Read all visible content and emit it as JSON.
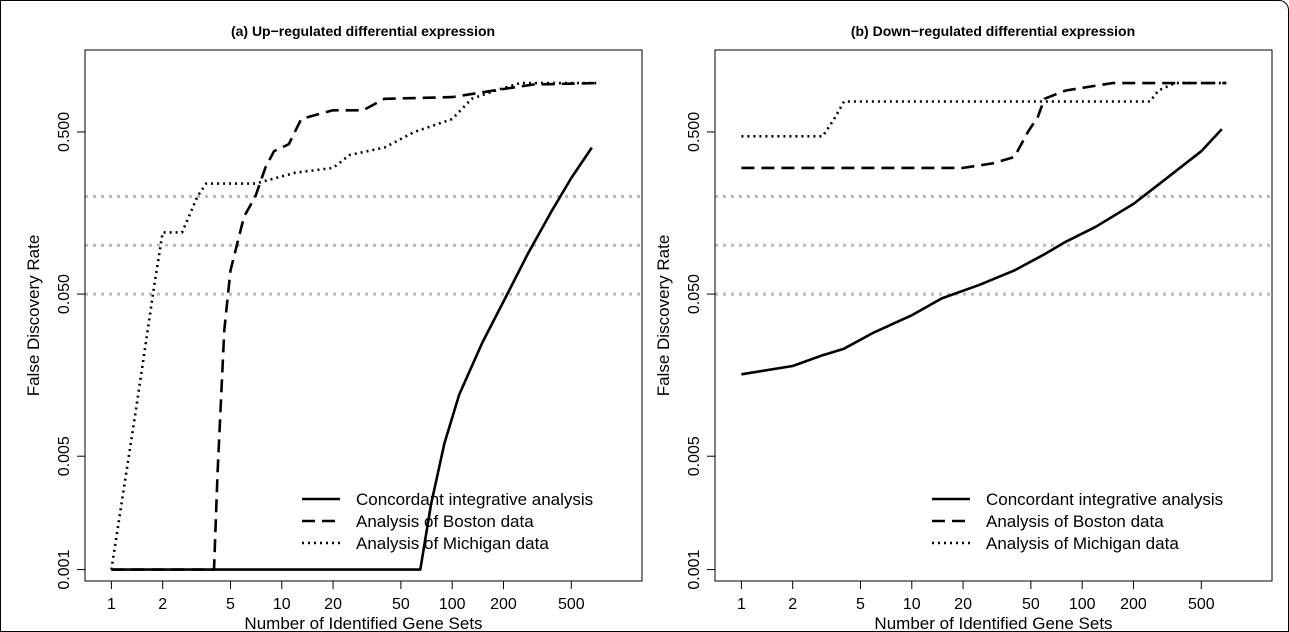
{
  "chart_data": [
    {
      "type": "line",
      "title": "(a) Up−regulated differential expression",
      "xlabel": "Number of Identified Gene Sets",
      "ylabel": "False Discovery Rate",
      "x_scale": "log",
      "y_scale": "log",
      "xlim": [
        0.7,
        1300
      ],
      "ylim": [
        0.00085,
        1.6
      ],
      "x_ticks": [
        1,
        2,
        5,
        10,
        20,
        50,
        100,
        200,
        500
      ],
      "x_tick_labels": [
        "1",
        "2",
        "5",
        "10",
        "20",
        "50",
        "100",
        "200",
        "500"
      ],
      "y_ticks": [
        0.001,
        0.005,
        0.05,
        0.5
      ],
      "y_tick_labels": [
        "0.001",
        "0.005",
        "0.050",
        "0.500"
      ],
      "reference_lines_y": [
        0.05,
        0.1,
        0.2
      ],
      "reference_line_color": "#bbbbbb",
      "legend_position": "bottom-right",
      "series": [
        {
          "name": "Concordant integrative analysis",
          "dash": "solid",
          "points": [
            [
              1,
              0.001
            ],
            [
              10,
              0.001
            ],
            [
              40,
              0.001
            ],
            [
              65,
              0.001
            ],
            [
              75,
              0.0025
            ],
            [
              90,
              0.006
            ],
            [
              110,
              0.012
            ],
            [
              150,
              0.025
            ],
            [
              200,
              0.045
            ],
            [
              280,
              0.09
            ],
            [
              380,
              0.16
            ],
            [
              500,
              0.26
            ],
            [
              660,
              0.4
            ]
          ]
        },
        {
          "name": "Analysis of Boston data",
          "dash": "dashed",
          "points": [
            [
              1,
              0.001
            ],
            [
              4,
              0.001
            ],
            [
              4.2,
              0.004
            ],
            [
              4.6,
              0.03
            ],
            [
              5,
              0.07
            ],
            [
              6,
              0.15
            ],
            [
              7,
              0.2
            ],
            [
              8,
              0.3
            ],
            [
              9,
              0.38
            ],
            [
              11,
              0.42
            ],
            [
              13,
              0.6
            ],
            [
              17,
              0.65
            ],
            [
              20,
              0.68
            ],
            [
              30,
              0.68
            ],
            [
              40,
              0.8
            ],
            [
              100,
              0.82
            ],
            [
              200,
              0.92
            ],
            [
              300,
              0.98
            ],
            [
              700,
              1.0
            ]
          ]
        },
        {
          "name": "Analysis of Michigan data",
          "dash": "dotted",
          "points": [
            [
              1,
              0.001
            ],
            [
              1.4,
              0.01
            ],
            [
              1.8,
              0.06
            ],
            [
              2,
              0.12
            ],
            [
              2.6,
              0.12
            ],
            [
              3.2,
              0.2
            ],
            [
              3.6,
              0.24
            ],
            [
              7,
              0.24
            ],
            [
              12,
              0.28
            ],
            [
              20,
              0.3
            ],
            [
              25,
              0.36
            ],
            [
              40,
              0.4
            ],
            [
              60,
              0.5
            ],
            [
              100,
              0.6
            ],
            [
              130,
              0.8
            ],
            [
              180,
              0.9
            ],
            [
              250,
              1.0
            ],
            [
              700,
              1.0
            ]
          ]
        }
      ]
    },
    {
      "type": "line",
      "title": "(b) Down−regulated differential expression",
      "xlabel": "Number of Identified Gene Sets",
      "ylabel": "False Discovery Rate",
      "x_scale": "log",
      "y_scale": "log",
      "xlim": [
        0.7,
        1300
      ],
      "ylim": [
        0.00085,
        1.6
      ],
      "x_ticks": [
        1,
        2,
        5,
        10,
        20,
        50,
        100,
        200,
        500
      ],
      "x_tick_labels": [
        "1",
        "2",
        "5",
        "10",
        "20",
        "50",
        "100",
        "200",
        "500"
      ],
      "y_ticks": [
        0.001,
        0.005,
        0.05,
        0.5
      ],
      "y_tick_labels": [
        "0.001",
        "0.005",
        "0.050",
        "0.500"
      ],
      "reference_lines_y": [
        0.05,
        0.1,
        0.2
      ],
      "reference_line_color": "#bbbbbb",
      "legend_position": "bottom-right",
      "series": [
        {
          "name": "Concordant integrative analysis",
          "dash": "solid",
          "points": [
            [
              1,
              0.016
            ],
            [
              2,
              0.018
            ],
            [
              3,
              0.021
            ],
            [
              4,
              0.023
            ],
            [
              6,
              0.029
            ],
            [
              10,
              0.037
            ],
            [
              15,
              0.047
            ],
            [
              25,
              0.057
            ],
            [
              40,
              0.07
            ],
            [
              60,
              0.088
            ],
            [
              80,
              0.105
            ],
            [
              120,
              0.13
            ],
            [
              200,
              0.18
            ],
            [
              300,
              0.25
            ],
            [
              500,
              0.38
            ],
            [
              660,
              0.52
            ]
          ]
        },
        {
          "name": "Analysis of Boston data",
          "dash": "dashed",
          "points": [
            [
              1,
              0.3
            ],
            [
              20,
              0.3
            ],
            [
              30,
              0.32
            ],
            [
              40,
              0.35
            ],
            [
              48,
              0.5
            ],
            [
              55,
              0.62
            ],
            [
              60,
              0.8
            ],
            [
              80,
              0.9
            ],
            [
              150,
              1.0
            ],
            [
              700,
              1.0
            ]
          ]
        },
        {
          "name": "Analysis of Michigan data",
          "dash": "dotted",
          "points": [
            [
              1,
              0.47
            ],
            [
              3,
              0.47
            ],
            [
              3.5,
              0.6
            ],
            [
              4,
              0.77
            ],
            [
              100,
              0.77
            ],
            [
              200,
              0.77
            ],
            [
              250,
              0.77
            ],
            [
              280,
              0.9
            ],
            [
              350,
              1.0
            ],
            [
              700,
              1.0
            ]
          ]
        }
      ]
    }
  ]
}
